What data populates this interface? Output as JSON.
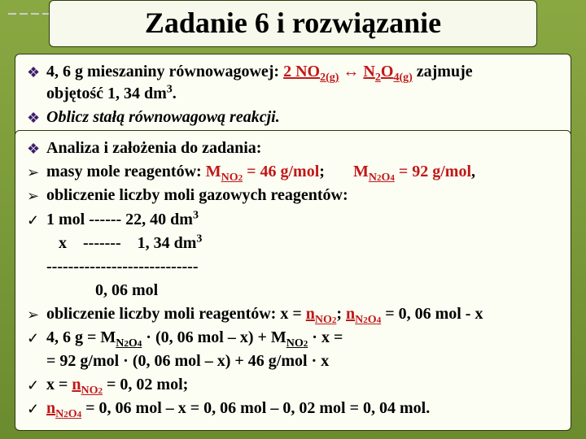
{
  "title": "Zadanie 6 i rozwiązanie",
  "panel1": {
    "line1_pre": "4, 6 g mieszaniny równowagowej: ",
    "line1_eq_a": "2 NO",
    "line1_eq_a_sub": "2(g)",
    "line1_arrow": " ↔ ",
    "line1_eq_b": "N",
    "line1_eq_b_sub": "2",
    "line1_eq_c": "O",
    "line1_eq_c_sub": "4(g)",
    "line1_post": " zajmuje",
    "line1b_pre": "objętość ",
    "line1b_val": "1, 34 dm",
    "line1b_sup": "3",
    "line1b_dot": ".",
    "line2": "Oblicz stałą równowagową reakcji."
  },
  "panel2": {
    "r1": "Analiza i założenia do zadania:",
    "r2_a": "masy mole reagentów: ",
    "r2_b": "M",
    "r2_b_sub": "NO",
    "r2_b_sub2": "2",
    "r2_c": " = 46 g/mol",
    "r2_d": ";       ",
    "r2_e": "M",
    "r2_e_sub": "N",
    "r2_e_sub2": "2",
    "r2_e_sub3": "O",
    "r2_e_sub4": "4",
    "r2_f": " = 92 g/mol",
    "r2_g": ",",
    "r3": "obliczenie liczby moli gazowych reagentów:",
    "r4_a": "1 mol ------ 22, 40 dm",
    "r4_sup": "3",
    "r5_a": "   x    -------    1, 34 dm",
    "r5_sup": "3",
    "r6": "----------------------------",
    "r7": "            0, 06 mol",
    "r8_a": "obliczenie  liczby moli reagentów: x = ",
    "r8_b": "n",
    "r8_b_sub": "NO",
    "r8_b_sub2": "2",
    "r8_c": ";  ",
    "r8_d": "n",
    "r8_d_sub": "N",
    "r8_d_sub2": "2",
    "r8_d_sub3": "O",
    "r8_d_sub4": "4",
    "r8_e": " = 0, 06 mol - x",
    "r9_a": "4, 6 g = M",
    "r9_a_sub": "N",
    "r9_a_sub2": "2",
    "r9_a_sub3": "O",
    "r9_a_sub4": "4",
    "r9_b": " · (0, 06 mol – x) + M",
    "r9_b_sub": "NO",
    "r9_b_sub2": "2",
    "r9_c": " · x =",
    "r10": "= 92 g/mol · (0, 06 mol – x) + 46 g/mol · x",
    "r11_a": "x = ",
    "r11_b": "n",
    "r11_b_sub": "NO",
    "r11_b_sub2": "2",
    "r11_c": " = 0, 02 mol;",
    "r12_a": "n",
    "r12_a_sub": "N",
    "r12_a_sub2": "2",
    "r12_a_sub3": "O",
    "r12_a_sub4": "4",
    "r12_b": " = 0, 06 mol – x = 0, 06 mol – 0, 02 mol = 0, 04 mol."
  },
  "colors": {
    "bg_top": "#8AA842",
    "bg_bottom": "#6B8B2F",
    "panel_bg": "#FCFDF3",
    "title_bg": "#F6F9EC",
    "border": "#2b3a0a",
    "diamond": "#3B1E6B",
    "red": "#C01818"
  }
}
